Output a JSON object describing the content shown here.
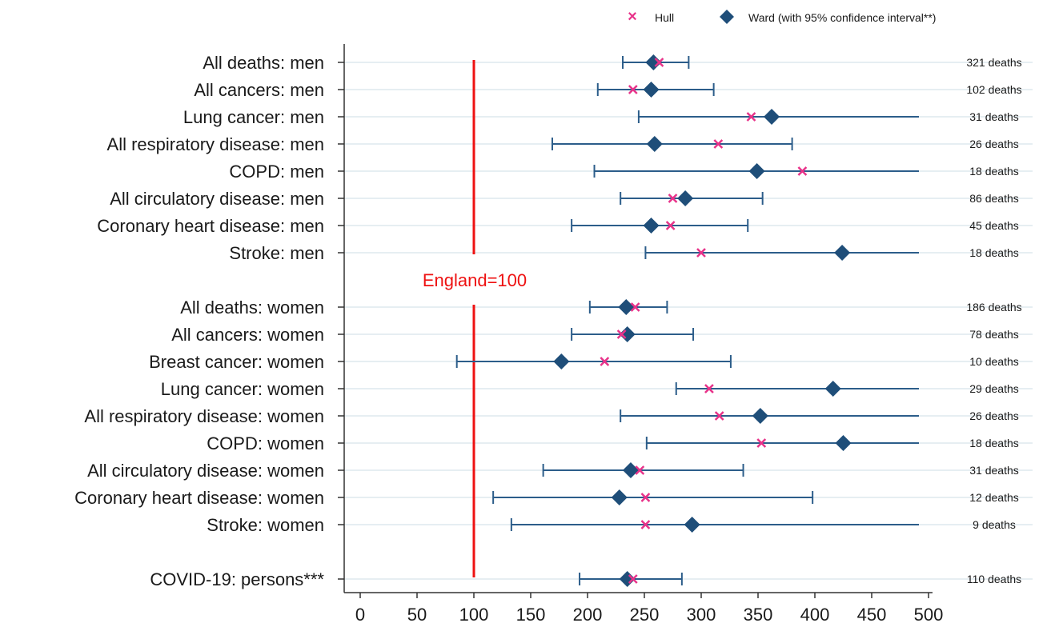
{
  "colors": {
    "hull": "#e8338a",
    "ward": "#1f4e79",
    "ci": "#2c5d8a",
    "reference": "#ee1111",
    "gridline": "#e6eef2",
    "axis": "#333333"
  },
  "legend": {
    "hull": "Hull",
    "ward": "Ward (with 95% confidence interval**)"
  },
  "chart_data": {
    "type": "scatter",
    "orientation": "horizontal forest plot",
    "xlim": [
      0,
      500
    ],
    "xticks": [
      0,
      50,
      100,
      150,
      200,
      250,
      300,
      350,
      400,
      450,
      500
    ],
    "tick_labels": [
      "0",
      "50",
      "100",
      "150",
      "200",
      "250",
      "300",
      "350",
      "400",
      "450",
      "500"
    ],
    "reference": {
      "value": 100,
      "label": "England=100"
    },
    "legend_position": "top-right",
    "grid": true,
    "rows": [
      {
        "label": "All deaths: men",
        "hull": 263,
        "ward": 258,
        "ci_low": 231,
        "ci_high": 289,
        "deaths": "321 deaths"
      },
      {
        "label": "All cancers: men",
        "hull": 240,
        "ward": 256,
        "ci_low": 209,
        "ci_high": 311,
        "deaths": "102 deaths"
      },
      {
        "label": "Lung cancer: men",
        "hull": 344,
        "ward": 362,
        "ci_low": 245,
        "ci_high": 500,
        "deaths": "31 deaths"
      },
      {
        "label": "All respiratory disease: men",
        "hull": 315,
        "ward": 259,
        "ci_low": 169,
        "ci_high": 380,
        "deaths": "26 deaths"
      },
      {
        "label": "COPD: men",
        "hull": 389,
        "ward": 349,
        "ci_low": 206,
        "ci_high": 500,
        "deaths": "18 deaths"
      },
      {
        "label": "All circulatory disease: men",
        "hull": 275,
        "ward": 286,
        "ci_low": 229,
        "ci_high": 354,
        "deaths": "86 deaths"
      },
      {
        "label": "Coronary heart disease: men",
        "hull": 273,
        "ward": 256,
        "ci_low": 186,
        "ci_high": 341,
        "deaths": "45 deaths"
      },
      {
        "label": "Stroke: men",
        "hull": 300,
        "ward": 424,
        "ci_low": 251,
        "ci_high": 500,
        "deaths": "18 deaths"
      },
      {
        "label": "All deaths: women",
        "hull": 242,
        "ward": 234,
        "ci_low": 202,
        "ci_high": 270,
        "deaths": "186 deaths"
      },
      {
        "label": "All cancers: women",
        "hull": 230,
        "ward": 235,
        "ci_low": 186,
        "ci_high": 293,
        "deaths": "78 deaths"
      },
      {
        "label": "Breast cancer: women",
        "hull": 215,
        "ward": 177,
        "ci_low": 85,
        "ci_high": 326,
        "deaths": "10 deaths"
      },
      {
        "label": "Lung cancer: women",
        "hull": 307,
        "ward": 416,
        "ci_low": 278,
        "ci_high": 500,
        "deaths": "29 deaths"
      },
      {
        "label": "All respiratory disease: women",
        "hull": 316,
        "ward": 352,
        "ci_low": 229,
        "ci_high": 500,
        "deaths": "26 deaths"
      },
      {
        "label": "COPD: women",
        "hull": 353,
        "ward": 425,
        "ci_low": 252,
        "ci_high": 500,
        "deaths": "18 deaths"
      },
      {
        "label": "All circulatory disease: women",
        "hull": 246,
        "ward": 238,
        "ci_low": 161,
        "ci_high": 337,
        "deaths": "31 deaths"
      },
      {
        "label": "Coronary heart disease: women",
        "hull": 251,
        "ward": 228,
        "ci_low": 117,
        "ci_high": 398,
        "deaths": "12 deaths"
      },
      {
        "label": "Stroke: women",
        "hull": 251,
        "ward": 292,
        "ci_low": 133,
        "ci_high": 500,
        "deaths": "9 deaths"
      },
      {
        "label": "COVID-19: persons***",
        "hull": 240,
        "ward": 235,
        "ci_low": 193,
        "ci_high": 283,
        "deaths": "110 deaths"
      }
    ]
  }
}
